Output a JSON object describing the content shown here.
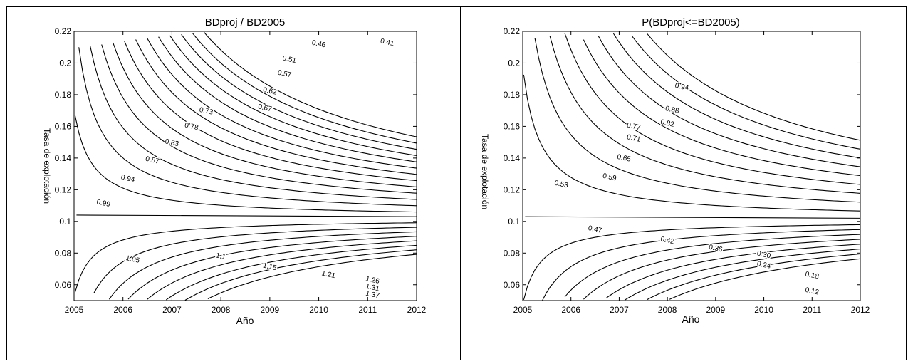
{
  "chart_data": [
    {
      "type": "contour",
      "title": "BDproj / BD2005",
      "xlabel": "Año",
      "ylabel": "Tasa de explotación",
      "xlim": [
        2005,
        2012
      ],
      "ylim": [
        0.05,
        0.22
      ],
      "x_ticks": [
        "2005",
        "2006",
        "2007",
        "2008",
        "2009",
        "2010",
        "2011",
        "2012"
      ],
      "y_ticks": [
        "0.06",
        "0.08",
        "0.1",
        "0.12",
        "0.14",
        "0.16",
        "0.18",
        "0.2",
        "0.22"
      ],
      "y_tick_values": [
        0.06,
        0.08,
        0.1,
        0.12,
        0.14,
        0.16,
        0.18,
        0.2,
        0.22
      ],
      "f_star": 0.102,
      "upper_level_count": 13,
      "lower_level_count": 8,
      "upper_labels": [
        {
          "text": "0.41",
          "x": 2011.4,
          "y": 0.2131
        },
        {
          "text": "0.46",
          "x": 2010.0,
          "y": 0.2121
        },
        {
          "text": "0.51",
          "x": 2009.4,
          "y": 0.2023
        },
        {
          "text": "0.57",
          "x": 2009.3,
          "y": 0.1932
        },
        {
          "text": "0.62",
          "x": 2009.0,
          "y": 0.1823
        },
        {
          "text": "0.67",
          "x": 2008.9,
          "y": 0.1717
        },
        {
          "text": "0.73",
          "x": 2007.7,
          "y": 0.1697
        },
        {
          "text": "0.78",
          "x": 2007.4,
          "y": 0.16
        },
        {
          "text": "0.83",
          "x": 2007.0,
          "y": 0.1497
        },
        {
          "text": "0.87",
          "x": 2006.6,
          "y": 0.1387
        },
        {
          "text": "0.94",
          "x": 2006.1,
          "y": 0.1271
        },
        {
          "text": "0.99",
          "x": 2005.6,
          "y": 0.1115
        }
      ],
      "lower_labels": [
        {
          "text": "1.05",
          "x": 2006.2,
          "y": 0.0761
        },
        {
          "text": "1.1",
          "x": 2008.0,
          "y": 0.078
        },
        {
          "text": "1.15",
          "x": 2009.0,
          "y": 0.0714
        },
        {
          "text": "1.21",
          "x": 2010.2,
          "y": 0.0665
        },
        {
          "text": "1.26",
          "x": 2011.1,
          "y": 0.063
        },
        {
          "text": "1.31",
          "x": 2011.1,
          "y": 0.0583
        },
        {
          "text": "1.37",
          "x": 2011.1,
          "y": 0.0538
        }
      ]
    },
    {
      "type": "contour",
      "title": "P(BDproj<=BD2005)",
      "xlabel": "Año",
      "ylabel": "Tasa de explotación",
      "xlim": [
        2005,
        2012
      ],
      "ylim": [
        0.05,
        0.22
      ],
      "x_ticks": [
        "2005",
        "2006",
        "2007",
        "2008",
        "2009",
        "2010",
        "2011",
        "2012"
      ],
      "y_ticks": [
        "0.06",
        "0.08",
        "0.1",
        "0.12",
        "0.14",
        "0.16",
        "0.18",
        "0.2",
        "0.22"
      ],
      "y_tick_values": [
        0.06,
        0.08,
        0.1,
        0.12,
        0.14,
        0.16,
        0.18,
        0.2,
        0.22
      ],
      "f_star": 0.101,
      "upper_level_count": 9,
      "lower_level_count": 8,
      "upper_labels": [
        {
          "text": "0.94",
          "x": 2008.3,
          "y": 0.185
        },
        {
          "text": "0.88",
          "x": 2008.1,
          "y": 0.1705
        },
        {
          "text": "0.82",
          "x": 2008.0,
          "y": 0.162
        },
        {
          "text": "0.77",
          "x": 2007.3,
          "y": 0.16
        },
        {
          "text": "0.71",
          "x": 2007.3,
          "y": 0.1525
        },
        {
          "text": "0.65",
          "x": 2007.1,
          "y": 0.14
        },
        {
          "text": "0.59",
          "x": 2006.8,
          "y": 0.128
        },
        {
          "text": "0.53",
          "x": 2005.8,
          "y": 0.1235
        }
      ],
      "lower_labels": [
        {
          "text": "0.47",
          "x": 2006.5,
          "y": 0.095
        },
        {
          "text": "0.42",
          "x": 2008.0,
          "y": 0.088
        },
        {
          "text": "0.36",
          "x": 2009.0,
          "y": 0.083
        },
        {
          "text": "0.30",
          "x": 2010.0,
          "y": 0.079
        },
        {
          "text": "0.24",
          "x": 2010.0,
          "y": 0.0725
        },
        {
          "text": "0.18",
          "x": 2011.0,
          "y": 0.066
        },
        {
          "text": "0.12",
          "x": 2011.0,
          "y": 0.056
        }
      ]
    }
  ]
}
